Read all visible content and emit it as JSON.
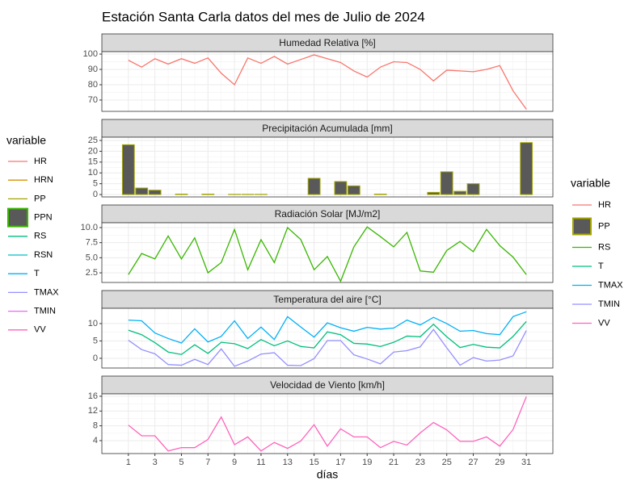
{
  "chart_data": {
    "type": "facet",
    "title": "Estación Santa Carla datos del mes de Julio de 2024",
    "x_label": "días",
    "x": [
      1,
      2,
      3,
      4,
      5,
      6,
      7,
      8,
      9,
      10,
      11,
      12,
      13,
      14,
      15,
      16,
      17,
      18,
      19,
      20,
      21,
      22,
      23,
      24,
      25,
      26,
      27,
      28,
      29,
      30,
      31
    ],
    "xlim": [
      -1,
      33
    ],
    "xticks": [
      1,
      3,
      5,
      7,
      9,
      11,
      13,
      15,
      17,
      19,
      21,
      23,
      25,
      27,
      29,
      31
    ],
    "grid": true,
    "legend_title": "variable",
    "panels": [
      {
        "type": "line",
        "title": "Humedad Relativa [%]",
        "ylim": [
          62.6,
          101.6
        ],
        "yticks": [
          70,
          80,
          90,
          100
        ],
        "series": [
          {
            "name": "HR",
            "color": "#F8766D",
            "values": [
              96,
              91.5,
              97,
              93.5,
              97,
              94,
              97.5,
              87.5,
              80,
              97.5,
              94,
              98.5,
              93.5,
              96.5,
              99.5,
              97,
              94.5,
              89,
              85,
              91.5,
              95,
              94.5,
              90,
              82.5,
              89.5,
              89,
              88.5,
              90,
              92.5,
              76,
              64
            ]
          }
        ]
      },
      {
        "type": "bar",
        "title": "Precipitación Acumulada [mm]",
        "ylim": [
          -1.1,
          26.5
        ],
        "yticks": [
          0,
          5,
          10,
          15,
          20,
          25
        ],
        "series": [
          {
            "name": "PP",
            "color": "#A3A500",
            "fill": "#595959",
            "values": [
              23,
              3,
              2,
              0,
              0.2,
              0,
              0.2,
              0,
              0.1,
              0.1,
              0.1,
              0,
              0,
              0,
              7.5,
              0,
              6,
              4,
              0,
              0.2,
              0,
              0,
              0,
              1,
              10.5,
              1.5,
              5,
              0,
              0,
              0,
              24
            ]
          }
        ]
      },
      {
        "type": "line",
        "title": "Radiación Solar [MJ/m2]",
        "ylim": [
          0.9,
          10.8
        ],
        "yticks": [
          2.5,
          {
            "value": 5,
            "label": "5.0"
          },
          7.5,
          {
            "value": 10,
            "label": "10.0"
          }
        ],
        "series": [
          {
            "name": "RS",
            "color": "#39B600",
            "values": [
              2.2,
              5.7,
              4.8,
              8.6,
              4.8,
              8.3,
              2.5,
              4.2,
              9.7,
              3,
              8,
              4.2,
              10,
              8,
              3,
              5.2,
              1.1,
              6.8,
              10.1,
              8.5,
              6.8,
              9.2,
              2.8,
              2.6,
              6.2,
              7.7,
              6,
              9.7,
              7,
              5.1,
              2.2
            ]
          }
        ]
      },
      {
        "type": "line",
        "title": "Temperatura del aire [°C]",
        "ylim": [
          -2.8,
          14.4
        ],
        "yticks": [
          0,
          5,
          10
        ],
        "series": [
          {
            "name": "T",
            "color": "#00BF7D",
            "values": [
              8.1,
              6.8,
              4.5,
              1.8,
              1.1,
              3.9,
              1.4,
              4.6,
              4.2,
              2.8,
              5.4,
              3.6,
              5,
              3.4,
              3,
              7.6,
              6.8,
              4.3,
              4.1,
              3.4,
              4.6,
              6.4,
              6.2,
              9.8,
              6.2,
              3.1,
              4,
              3.2,
              3,
              6.3,
              10.6
            ]
          },
          {
            "name": "TMAX",
            "color": "#00B0F6",
            "values": [
              11,
              10.8,
              7.3,
              5.7,
              4.4,
              8.5,
              4.7,
              6.3,
              10.8,
              5.7,
              9,
              5.4,
              12,
              9,
              6.1,
              10.2,
              8.8,
              7.8,
              8.9,
              8.4,
              8.7,
              11,
              9.6,
              11.8,
              10,
              7.8,
              8,
              7.1,
              6.8,
              12,
              13.4
            ]
          },
          {
            "name": "TMIN",
            "color": "#9590FF",
            "values": [
              5.2,
              2.5,
              1.3,
              -1.8,
              -2,
              -0.3,
              -1.8,
              2.7,
              -2.3,
              -0.8,
              1.2,
              1.6,
              -2,
              -2.1,
              -0.1,
              5.1,
              5.1,
              1,
              -0.2,
              -1.6,
              1.8,
              2.2,
              3.3,
              8.3,
              3,
              -2,
              0.2,
              -0.8,
              -0.5,
              0.7,
              8
            ]
          }
        ]
      },
      {
        "type": "line",
        "title": "Velocidad de Viento [km/h]",
        "ylim": [
          0.5,
          16.65
        ],
        "yticks": [
          4,
          8,
          12,
          16
        ],
        "series": [
          {
            "name": "VV",
            "color": "#FF62BC",
            "values": [
              8.2,
              5.3,
              5.3,
              1.2,
              2.1,
              2.1,
              4.3,
              10.4,
              2.9,
              5,
              1.2,
              3.5,
              1.9,
              3.9,
              8.3,
              2.5,
              7.2,
              5,
              5,
              2.1,
              3.8,
              2.8,
              6.1,
              8.9,
              6.9,
              3.8,
              3.8,
              5,
              2.5,
              7,
              15.9
            ]
          }
        ]
      }
    ],
    "left_legend": {
      "title": "variable",
      "entries": [
        {
          "name": "HR",
          "color": "#F8766D"
        },
        {
          "name": "HRN",
          "color": "#D89000"
        },
        {
          "name": "PP",
          "color": "#A3A500"
        },
        {
          "name": "PPN",
          "color": "#39B600",
          "fill": "#595959"
        },
        {
          "name": "RS",
          "color": "#00BF7D"
        },
        {
          "name": "RSN",
          "color": "#00BFC4"
        },
        {
          "name": "T",
          "color": "#00B0F6"
        },
        {
          "name": "TMAX",
          "color": "#9590FF"
        },
        {
          "name": "TMIN",
          "color": "#E76BF3"
        },
        {
          "name": "VV",
          "color": "#FF62BC"
        }
      ]
    }
  }
}
